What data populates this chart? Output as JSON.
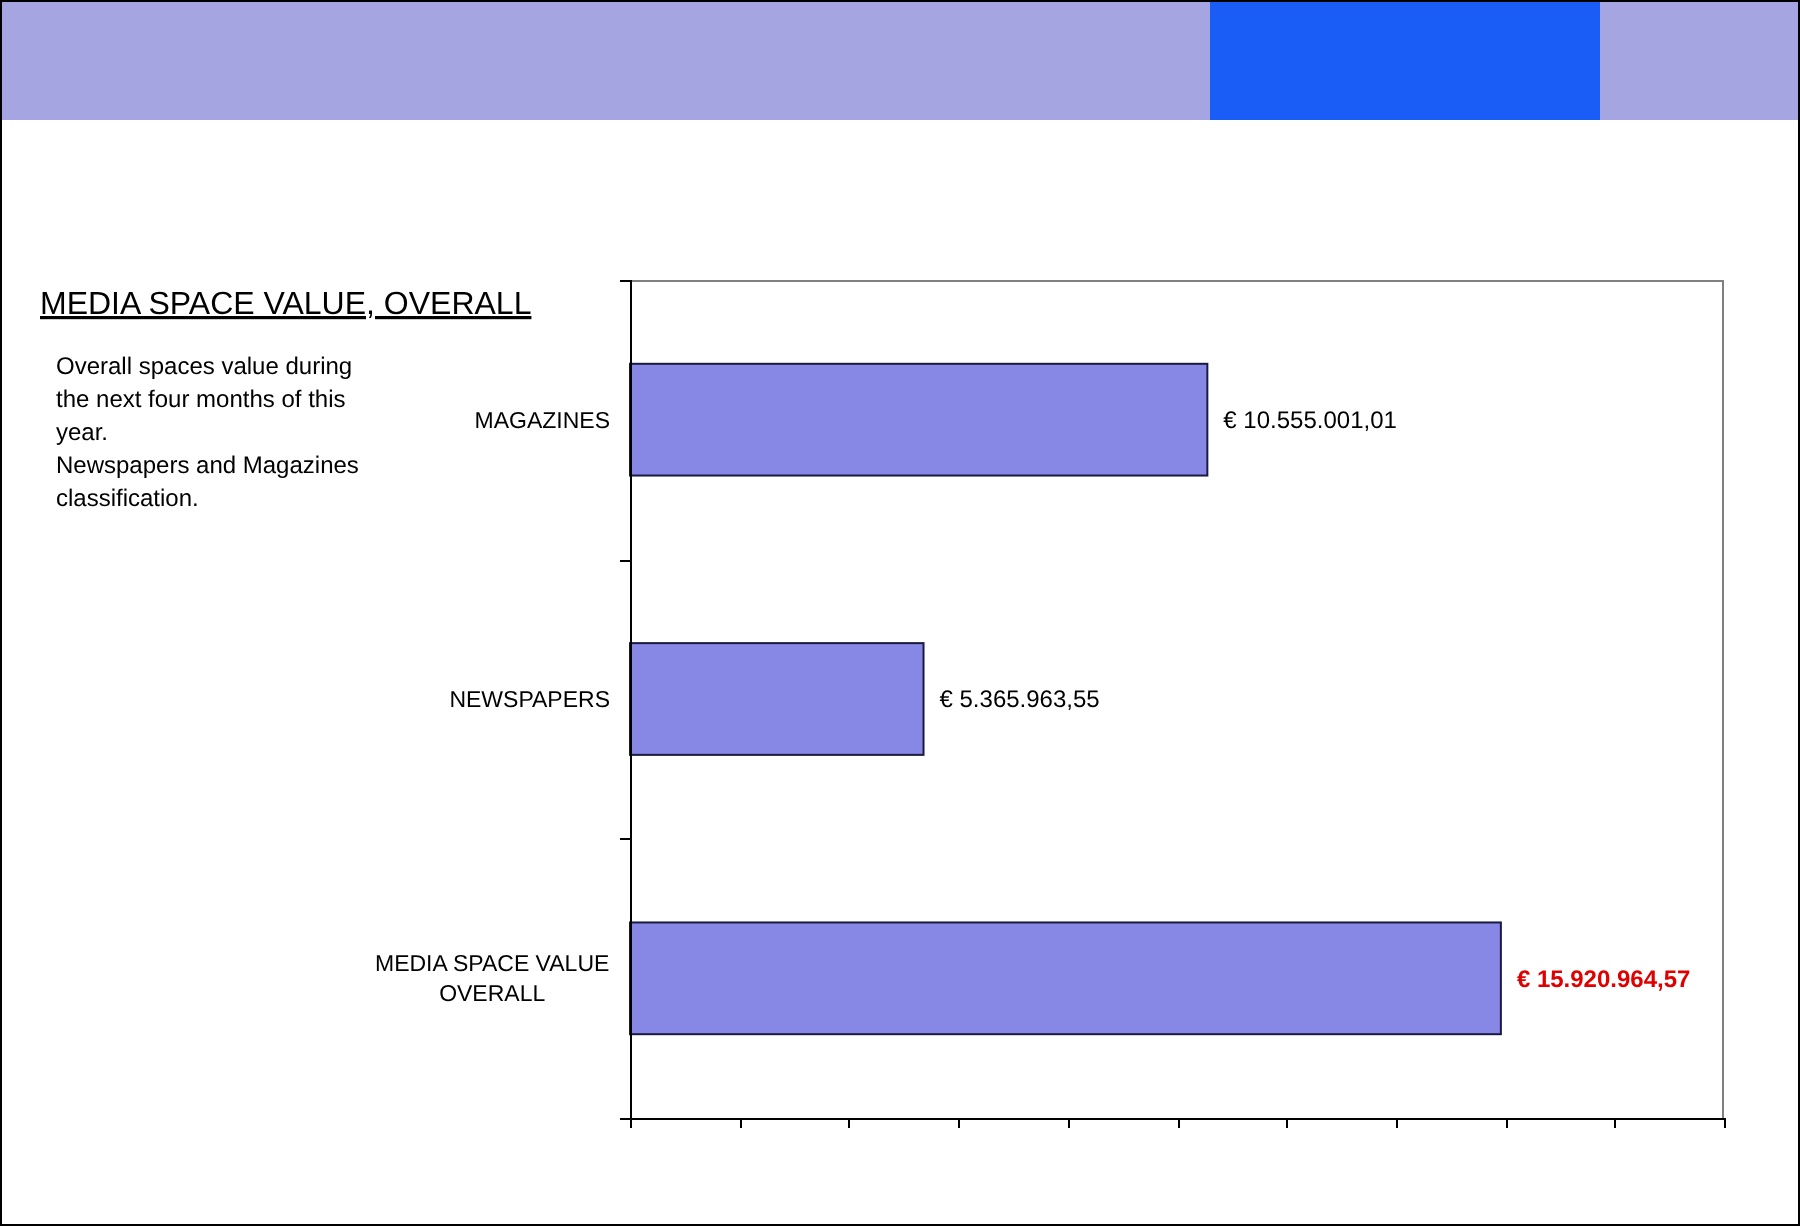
{
  "chart_data": {
    "type": "bar",
    "orientation": "horizontal",
    "title": "MEDIA SPACE VALUE, OVERALL",
    "categories": [
      "MAGAZINES",
      "NEWSPAPERS",
      "MEDIA SPACE VALUE OVERALL"
    ],
    "values": [
      10555001.01,
      5365963.55,
      15920964.57
    ],
    "color": "#8787e6",
    "value_labels": [
      "€ 10.555.001,01",
      "€ 5.365.963,55",
      null
    ],
    "xlim": [
      0,
      20000000
    ],
    "xticks": [
      {
        "value": 0,
        "label": null
      },
      {
        "value": 2000000,
        "label": null
      },
      {
        "value": 4000000,
        "label": null
      },
      {
        "value": 6000000,
        "label": null
      },
      {
        "value": 8000000,
        "label": null
      },
      {
        "value": 10000000,
        "label": null
      },
      {
        "value": 12000000,
        "label": null
      },
      {
        "value": 14000000,
        "label": null
      },
      {
        "value": 16000000,
        "label": null
      },
      {
        "value": 18000000,
        "label": null
      },
      {
        "value": 20000000,
        "label": null
      }
    ],
    "tick_labels": "y",
    "annotations": [
      "Overall spaces value during the next four months of this year.",
      "Newspapers and Magazines classification.",
      {
        "text": "€ 15.920.964,57",
        "x": 15920964.57,
        "y": "MEDIA SPACE VALUE OVERALL"
      }
    ]
  }
}
